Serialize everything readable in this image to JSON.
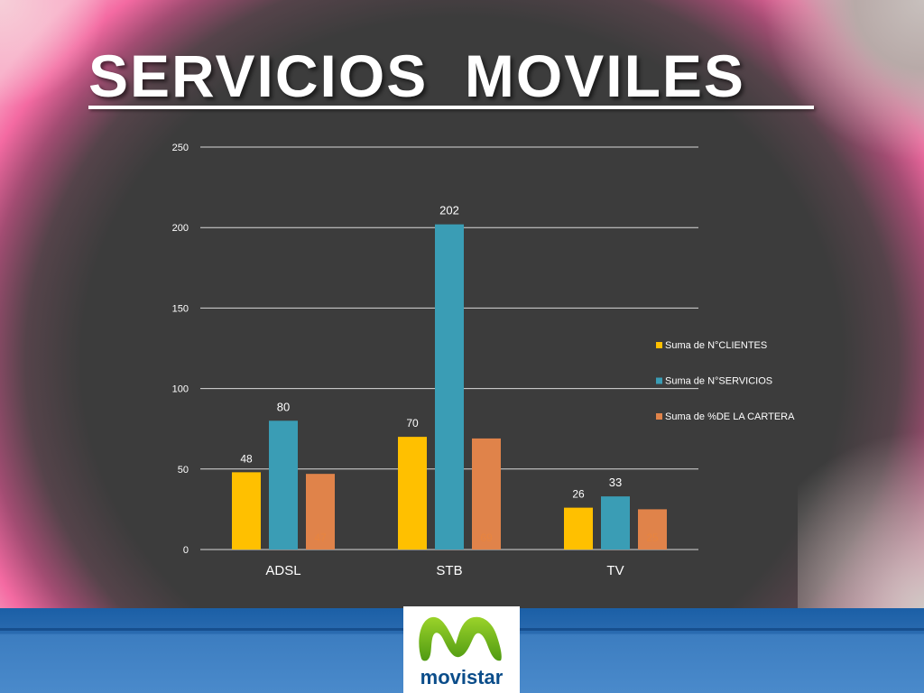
{
  "slide": {
    "title": "SERVICIOS  MOVILES",
    "logo_text": "movistar"
  },
  "colors": {
    "series_1": "#FFC000",
    "series_2": "#3A9DB5",
    "series_3": "#E0834A",
    "text": "#FFFFFF",
    "gridline": "#D9D9D9"
  },
  "icons": {
    "logo": "movistar-m-icon"
  },
  "chart_data": {
    "type": "bar",
    "categories": [
      "ADSL",
      "STB",
      "TV"
    ],
    "series": [
      {
        "name": "Suma de N°CLIENTES",
        "values": [
          48,
          70,
          26
        ]
      },
      {
        "name": "Suma de N°SERVICIOS",
        "values": [
          80,
          202,
          33
        ]
      },
      {
        "name": "Suma de %DE LA CARTERA",
        "values": [
          47,
          69,
          25
        ]
      }
    ],
    "y_ticks": [
      "0",
      "50",
      "100",
      "150",
      "200",
      "250"
    ],
    "ylim": [
      0,
      250
    ],
    "grid": true,
    "legend_position": "right"
  }
}
